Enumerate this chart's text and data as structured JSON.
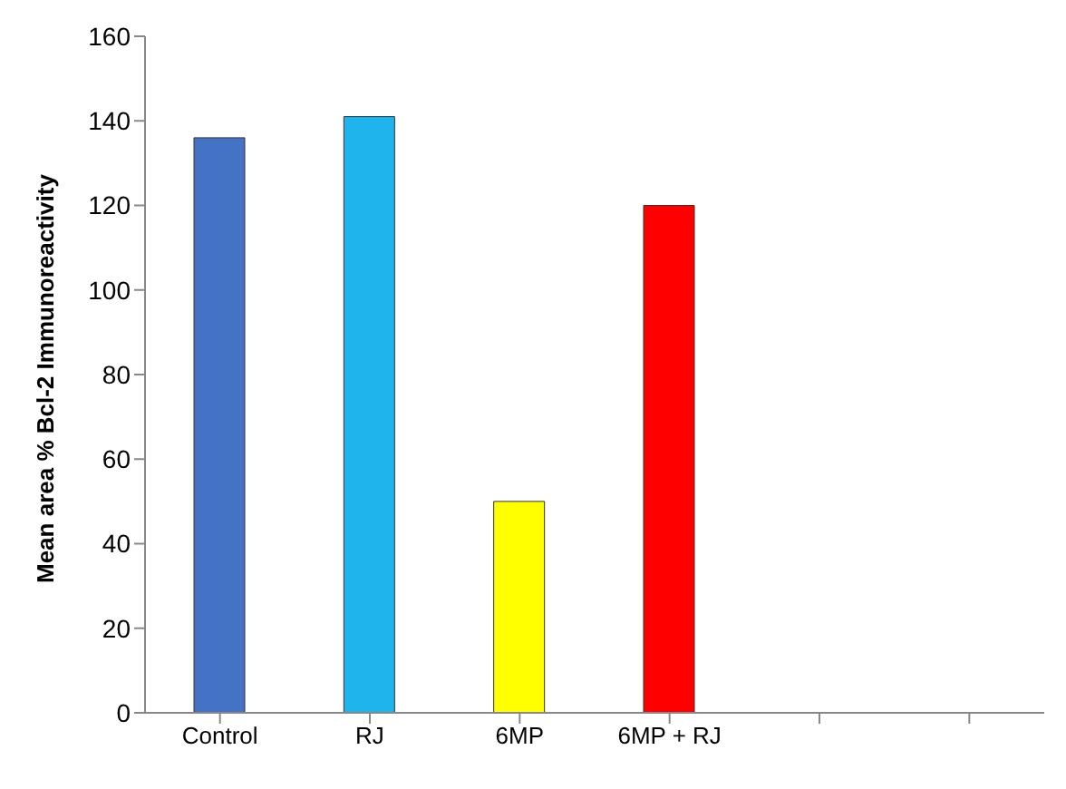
{
  "chart_data": {
    "type": "bar",
    "ylabel": "Mean area % Bcl-2 Immunoreactivity",
    "categories": [
      "Control",
      "RJ",
      "6MP",
      "6MP + RJ",
      null,
      null
    ],
    "values": [
      136,
      141,
      50,
      120,
      null,
      null
    ],
    "colors": [
      "#4472c4",
      "#1fb4ec",
      "#ffff00",
      "#ff0000",
      "#000000",
      "#000000"
    ],
    "ylim": [
      0,
      160
    ],
    "yticks": [
      0,
      20,
      40,
      60,
      80,
      100,
      120,
      140,
      160
    ],
    "grid": false,
    "legend": false
  }
}
